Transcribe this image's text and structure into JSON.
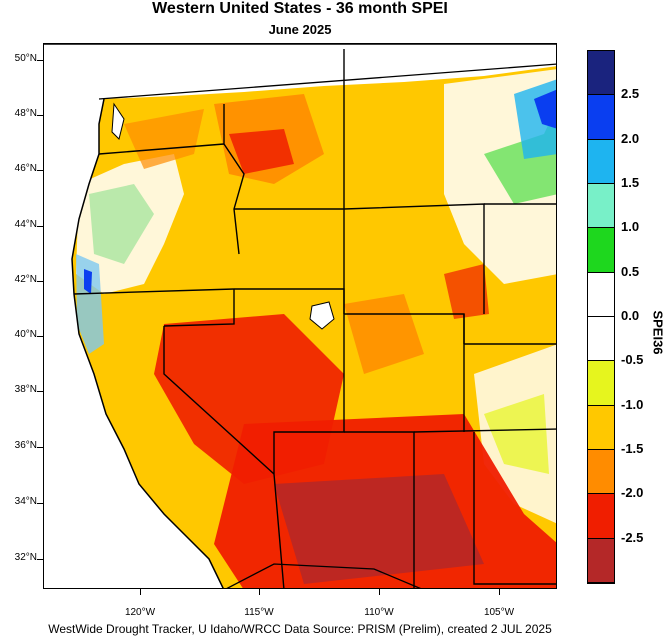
{
  "title": "Western United States - 36 month SPEI",
  "subtitle": "June 2025",
  "footer": "WestWide Drought Tracker, U Idaho/WRCC Data Source: PRISM (Prelim), created  2 JUL 2025",
  "lat_labels": [
    "50°N",
    "48°N",
    "46°N",
    "44°N",
    "42°N",
    "40°N",
    "38°N",
    "36°N",
    "34°N",
    "32°N"
  ],
  "lon_labels": [
    "120°W",
    "115°W",
    "110°W",
    "105°W"
  ],
  "colorbar": {
    "title": "SPEI36",
    "labels": [
      "2.5",
      "2.0",
      "1.5",
      "1.0",
      "0.5",
      "0.0",
      "-0.5",
      "-1.0",
      "-1.5",
      "-2.0",
      "-2.5"
    ],
    "colors": [
      "#1a237e",
      "#0a3ef0",
      "#1eb4f0",
      "#78f0c8",
      "#1ed71e",
      "#ffffff",
      "#ffffff",
      "#e6f51e",
      "#ffc800",
      "#ff8c00",
      "#f01e00",
      "#b42828"
    ]
  }
}
